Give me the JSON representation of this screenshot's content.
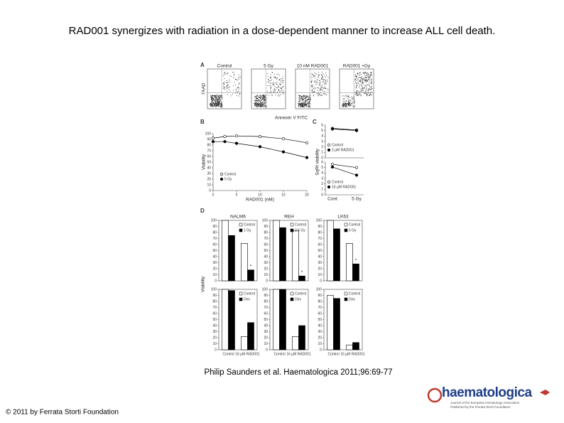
{
  "title": "RAD001 synergizes with radiation in a dose-dependent manner to increase ALL cell death.",
  "citation": "Philip Saunders et al. Haematologica 2011;96:69-77",
  "copyright": "© 2011 by Ferrata Storti Foundation",
  "logo": {
    "name": "haematologica",
    "tagline_1": "Journal of the European Hematology Association",
    "tagline_2": "Published by the Ferrata Storti Foundation"
  },
  "figure": {
    "panel_a": {
      "label": "A",
      "y_label": "7AAD",
      "x_label": "Annexin V FITC",
      "plots": [
        {
          "title": "Control",
          "percent": "90%"
        },
        {
          "title": "5 Gy",
          "percent": "79%"
        },
        {
          "title": "10 nM RAD001",
          "percent": "78%"
        },
        {
          "title": "RAD001 +Gy",
          "percent": "45%"
        }
      ]
    },
    "panel_b": {
      "label": "B",
      "x_label": "RAD001 (nM)",
      "y_label": "Viability",
      "x": [
        0,
        2.5,
        5,
        10,
        15,
        20
      ],
      "xlim": [
        0,
        20
      ],
      "xticks": [
        0,
        5,
        10,
        15,
        20
      ],
      "ylim": [
        0,
        100
      ],
      "yticks": [
        0,
        10,
        20,
        30,
        40,
        50,
        60,
        70,
        80,
        90,
        100
      ],
      "series": [
        {
          "name": "Control",
          "marker": "open",
          "values": [
            92,
            95,
            96,
            95,
            91,
            84
          ]
        },
        {
          "name": "5 Gy",
          "marker": "filled",
          "values": [
            86,
            86,
            83,
            77,
            68,
            58
          ]
        }
      ]
    },
    "panel_c": {
      "label": "C",
      "y_label": "SqRt viability",
      "categories": [
        "Cont",
        "5 Gy"
      ],
      "ylim": [
        0,
        6
      ],
      "yticks": [
        0,
        1,
        2,
        3,
        4,
        5,
        6
      ],
      "plots": [
        {
          "series": [
            {
              "name": "Control",
              "marker": "open",
              "values": [
                5.4,
                5.1
              ]
            },
            {
              "name": "2 µM RAD001",
              "marker": "filled",
              "values": [
                5.3,
                5.0
              ]
            }
          ]
        },
        {
          "series": [
            {
              "name": "Control",
              "marker": "open",
              "values": [
                5.6,
                5.0
              ]
            },
            {
              "name": "16 µM RAD001",
              "marker": "filled",
              "values": [
                5.1,
                3.6
              ]
            }
          ]
        }
      ]
    },
    "panel_d": {
      "label": "D",
      "y_label": "Viability",
      "categories": [
        "Control",
        "16 µM RAD001"
      ],
      "ylim": [
        0,
        100
      ],
      "yticks": [
        0,
        10,
        20,
        30,
        40,
        50,
        60,
        70,
        80,
        90,
        100
      ],
      "charts": [
        {
          "title": "NALM6",
          "significance": "*",
          "series": [
            {
              "name": "Control",
              "color": "#ffffff",
              "values": [
                100,
                62
              ]
            },
            {
              "name": "1 Gy",
              "color": "#000000",
              "values": [
                75,
                18
              ]
            }
          ]
        },
        {
          "title": "REH",
          "significance": "*",
          "series": [
            {
              "name": "Control",
              "color": "#ffffff",
              "values": [
                100,
                83
              ]
            },
            {
              "name": "2.5 Gy",
              "color": "#000000",
              "values": [
                88,
                8
              ]
            }
          ]
        },
        {
          "title": "LK63",
          "significance": "*",
          "series": [
            {
              "name": "Control",
              "color": "#ffffff",
              "values": [
                100,
                62
              ]
            },
            {
              "name": "5 Gy",
              "color": "#000000",
              "values": [
                86,
                28
              ]
            }
          ]
        },
        {
          "series": [
            {
              "name": "Control",
              "color": "#ffffff",
              "values": [
                100,
                22
              ]
            },
            {
              "name": "Dex",
              "color": "#000000",
              "values": [
                98,
                45
              ]
            }
          ]
        },
        {
          "series": [
            {
              "name": "Control",
              "color": "#ffffff",
              "values": [
                100,
                22
              ]
            },
            {
              "name": "Dex",
              "color": "#000000",
              "values": [
                100,
                40
              ]
            }
          ]
        },
        {
          "series": [
            {
              "name": "Control",
              "color": "#ffffff",
              "values": [
                90,
                8
              ]
            },
            {
              "name": "Dex",
              "color": "#000000",
              "values": [
                85,
                12
              ]
            }
          ]
        }
      ]
    }
  }
}
